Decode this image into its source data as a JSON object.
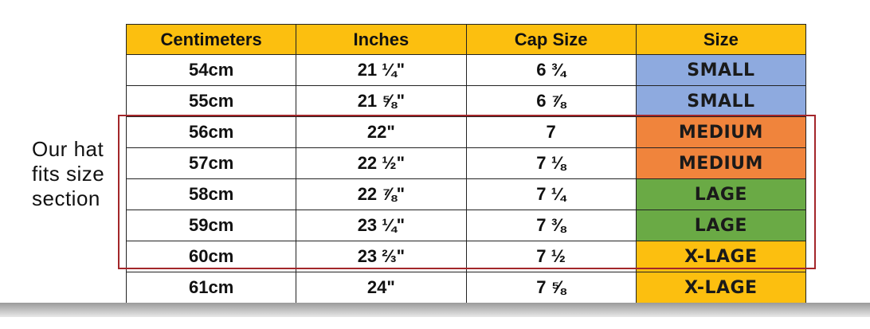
{
  "table": {
    "header": [
      "Centimeters",
      "Inches",
      "Cap Size",
      "Size"
    ],
    "rows": [
      [
        "54cm",
        "21 ¼\"",
        "6 ¾",
        "SMALL"
      ],
      [
        "55cm",
        "21 ⅝\"",
        "6 ⅞",
        "SMALL"
      ],
      [
        "56cm",
        "22\"",
        "7",
        "MEDIUM"
      ],
      [
        "57cm",
        "22 ½\"",
        "7 ⅛",
        "MEDIUM"
      ],
      [
        "58cm",
        "22 ⅞\"",
        "7 ¼",
        "LAGE"
      ],
      [
        "59cm",
        "23 ¼\"",
        "7 ⅜",
        "LAGE"
      ],
      [
        "60cm",
        "23 ⅔\"",
        "7 ½",
        "X-LAGE"
      ],
      [
        "61cm",
        "24\"",
        "7 ⅝",
        "X-LAGE"
      ]
    ]
  },
  "note": {
    "lines": [
      "Our hat",
      "fits size",
      "section"
    ]
  }
}
